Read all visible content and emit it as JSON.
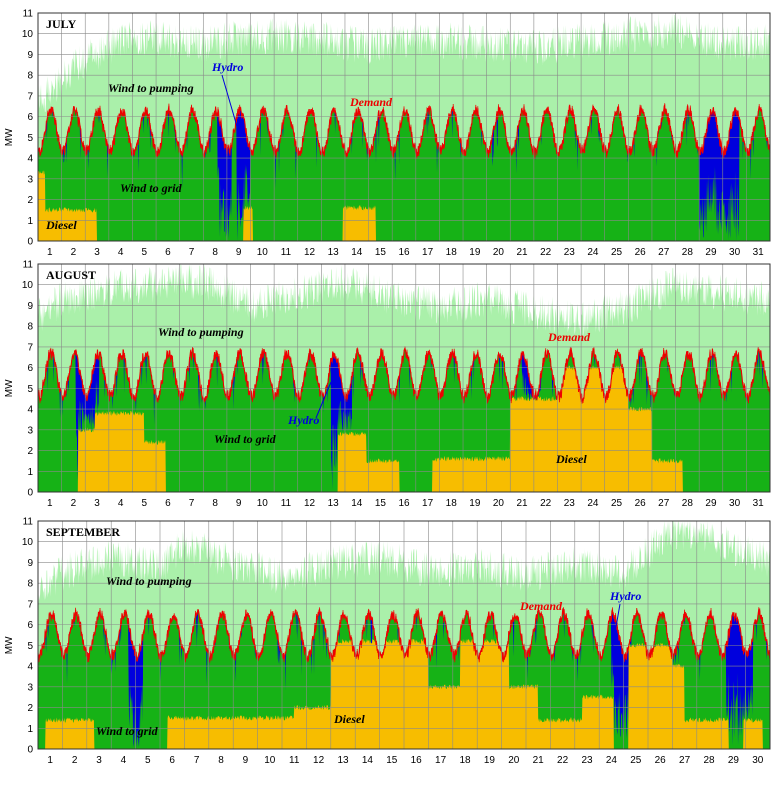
{
  "chart_data": [
    {
      "type": "area",
      "title": "JULY",
      "ylabel": "MW",
      "ylim": [
        0,
        11
      ],
      "yticks": [
        "0",
        "1",
        "2",
        "3",
        "4",
        "5",
        "6",
        "7",
        "8",
        "9",
        "10",
        "11"
      ],
      "xticks": [
        "1",
        "2",
        "3",
        "4",
        "5",
        "6",
        "7",
        "8",
        "9",
        "10",
        "11",
        "12",
        "13",
        "14",
        "15",
        "16",
        "17",
        "18",
        "19",
        "20",
        "21",
        "22",
        "23",
        "24",
        "25",
        "26",
        "27",
        "28",
        "29",
        "30",
        "31"
      ],
      "days": 31,
      "grid": true,
      "series": [
        {
          "name": "Wind to pumping",
          "color": "#aaf0aa"
        },
        {
          "name": "Wind to grid",
          "color": "#16b216"
        },
        {
          "name": "Hydro",
          "color": "#0000dd"
        },
        {
          "name": "Diesel",
          "color": "#f7bd00"
        },
        {
          "name": "Demand",
          "color": "#ee0000"
        }
      ],
      "annotations": {
        "pumping": "Wind to pumping",
        "grid": "Wind to grid",
        "hydro": "Hydro",
        "demand": "Demand",
        "diesel": "Diesel"
      },
      "diesel_periods": [
        [
          0.0,
          0.3,
          3.3
        ],
        [
          0.3,
          2.5,
          1.5
        ],
        [
          8.7,
          9.1,
          1.6
        ],
        [
          12.9,
          14.3,
          1.6
        ]
      ],
      "hydro_periods": [
        [
          7.6,
          8.2
        ],
        [
          8.4,
          9.0
        ],
        [
          28.0,
          29.7
        ]
      ],
      "pumping_level": [
        [
          1,
          6.8
        ],
        [
          2,
          7.8
        ],
        [
          3,
          8.8
        ],
        [
          5,
          9.9
        ],
        [
          8,
          9.5
        ],
        [
          9.5,
          9.8
        ],
        [
          12,
          9.9
        ],
        [
          15,
          9.4
        ],
        [
          18,
          9.7
        ],
        [
          22,
          9.3
        ],
        [
          25,
          9.8
        ],
        [
          28,
          10.2
        ],
        [
          30,
          9.5
        ],
        [
          32,
          9.6
        ]
      ],
      "demand_range": [
        4.3,
        6.3
      ]
    },
    {
      "type": "area",
      "title": "AUGUST",
      "ylabel": "MW",
      "ylim": [
        0,
        11
      ],
      "yticks": [
        "0",
        "1",
        "2",
        "3",
        "4",
        "5",
        "6",
        "7",
        "8",
        "9",
        "10",
        "11"
      ],
      "xticks": [
        "1",
        "2",
        "3",
        "4",
        "5",
        "6",
        "7",
        "8",
        "9",
        "10",
        "11",
        "12",
        "13",
        "14",
        "15",
        "16",
        "17",
        "18",
        "19",
        "20",
        "21",
        "22",
        "23",
        "24",
        "25",
        "26",
        "27",
        "28",
        "29",
        "30",
        "31"
      ],
      "days": 31,
      "grid": true,
      "series": [
        {
          "name": "Wind to pumping",
          "color": "#aaf0aa"
        },
        {
          "name": "Wind to grid",
          "color": "#16b216"
        },
        {
          "name": "Hydro",
          "color": "#0000dd"
        },
        {
          "name": "Diesel",
          "color": "#f7bd00"
        },
        {
          "name": "Demand",
          "color": "#ee0000"
        }
      ],
      "annotations": {
        "pumping": "Wind to pumping",
        "grid": "Wind to grid",
        "hydro": "Hydro",
        "demand": "Demand",
        "diesel": "Diesel"
      },
      "diesel_periods": [
        [
          1.7,
          2.4,
          3.0
        ],
        [
          2.4,
          4.5,
          3.8
        ],
        [
          4.5,
          5.4,
          2.4
        ],
        [
          12.7,
          13.9,
          2.8
        ],
        [
          13.9,
          15.3,
          1.5
        ],
        [
          16.7,
          20.0,
          1.6
        ],
        [
          20.0,
          22.0,
          4.5
        ],
        [
          22.0,
          25.0,
          6.0
        ],
        [
          25.0,
          26.0,
          4.0
        ],
        [
          26.0,
          27.3,
          1.5
        ]
      ],
      "hydro_periods": [
        [
          1.6,
          2.6
        ],
        [
          12.4,
          13.3
        ],
        [
          20.5,
          21.3
        ]
      ],
      "pumping_level": [
        [
          1,
          8.5
        ],
        [
          2,
          9.3
        ],
        [
          4,
          9.8
        ],
        [
          6,
          10.0
        ],
        [
          8,
          10.2
        ],
        [
          10,
          9.0
        ],
        [
          12,
          9.6
        ],
        [
          14,
          10.1
        ],
        [
          16,
          9.4
        ],
        [
          18,
          8.9
        ],
        [
          20,
          9.3
        ],
        [
          22,
          8.7
        ],
        [
          24,
          8.3
        ],
        [
          26,
          9.0
        ],
        [
          28,
          10.0
        ],
        [
          30,
          9.6
        ],
        [
          32,
          9.3
        ]
      ],
      "demand_range": [
        4.6,
        6.7
      ]
    },
    {
      "type": "area",
      "title": "SEPTEMBER",
      "ylabel": "MW",
      "ylim": [
        0,
        11
      ],
      "yticks": [
        "0",
        "1",
        "2",
        "3",
        "4",
        "5",
        "6",
        "7",
        "8",
        "9",
        "10",
        "11"
      ],
      "xticks": [
        "1",
        "2",
        "3",
        "4",
        "5",
        "6",
        "7",
        "8",
        "9",
        "10",
        "11",
        "12",
        "13",
        "14",
        "15",
        "16",
        "17",
        "18",
        "19",
        "20",
        "21",
        "22",
        "23",
        "24",
        "25",
        "26",
        "27",
        "28",
        "29",
        "30"
      ],
      "days": 30,
      "grid": true,
      "series": [
        {
          "name": "Wind to pumping",
          "color": "#aaf0aa"
        },
        {
          "name": "Wind to grid",
          "color": "#16b216"
        },
        {
          "name": "Hydro",
          "color": "#0000dd"
        },
        {
          "name": "Diesel",
          "color": "#f7bd00"
        },
        {
          "name": "Demand",
          "color": "#ee0000"
        }
      ],
      "annotations": {
        "pumping": "Wind to pumping",
        "grid": "Wind to grid",
        "hydro": "Hydro",
        "demand": "Demand",
        "diesel": "Diesel"
      },
      "diesel_periods": [
        [
          0.3,
          2.3,
          1.4
        ],
        [
          5.3,
          10.5,
          1.5
        ],
        [
          10.5,
          12.0,
          2.0
        ],
        [
          12.0,
          16.0,
          5.2
        ],
        [
          16.0,
          17.3,
          3.0
        ],
        [
          17.3,
          19.3,
          5.2
        ],
        [
          19.3,
          20.5,
          3.0
        ],
        [
          20.5,
          22.3,
          1.4
        ],
        [
          22.3,
          23.6,
          2.5
        ],
        [
          24.2,
          26.0,
          5.0
        ],
        [
          26.0,
          26.5,
          4.0
        ],
        [
          26.5,
          28.3,
          1.4
        ],
        [
          28.9,
          29.7,
          1.4
        ]
      ],
      "hydro_periods": [
        [
          3.7,
          4.3
        ],
        [
          23.5,
          24.3
        ],
        [
          28.2,
          29.3
        ]
      ],
      "pumping_level": [
        [
          1,
          7.8
        ],
        [
          2,
          8.5
        ],
        [
          4,
          9.3
        ],
        [
          6,
          8.7
        ],
        [
          7,
          9.9
        ],
        [
          9,
          9.0
        ],
        [
          11,
          8.3
        ],
        [
          13,
          8.9
        ],
        [
          15,
          9.3
        ],
        [
          17,
          8.6
        ],
        [
          19,
          8.8
        ],
        [
          21,
          8.4
        ],
        [
          23,
          8.9
        ],
        [
          25,
          8.5
        ],
        [
          27,
          10.5
        ],
        [
          29,
          10.0
        ],
        [
          31,
          9.0
        ]
      ],
      "demand_range": [
        4.5,
        6.5
      ]
    }
  ]
}
